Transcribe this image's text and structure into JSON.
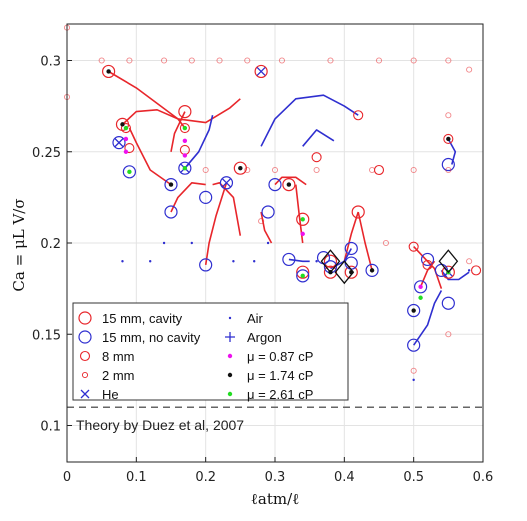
{
  "chart_data": {
    "type": "scatter",
    "xlabel": "ℓatm/ℓ",
    "ylabel": "Ca = μL V/σ",
    "xlim": [
      0,
      0.6
    ],
    "ylim": [
      0.08,
      0.32
    ],
    "x_ticks": [
      "0",
      "0.1",
      "0.2",
      "0.3",
      "0.4",
      "0.5",
      "0.6"
    ],
    "y_ticks": [
      "0.1",
      "0.15",
      "0.2",
      "0.25",
      "0.3"
    ],
    "grid": true,
    "legend_position": "bottom-left",
    "legend": [
      {
        "label": "15 mm, cavity",
        "symbol": "circle-large",
        "color": "#e8262b"
      },
      {
        "label": "Air",
        "symbol": "dot-small",
        "color": "#2f2fd0"
      },
      {
        "label": "15 mm, no cavity",
        "symbol": "circle-large",
        "color": "#2f2fd0"
      },
      {
        "label": "Argon",
        "symbol": "plus",
        "color": "#2f2fd0"
      },
      {
        "label": "8 mm",
        "symbol": "circle-medium",
        "color": "#e8262b"
      },
      {
        "label": "μ = 0.87 cP",
        "symbol": "dot",
        "color": "#ee11ee"
      },
      {
        "label": "2 mm",
        "symbol": "circle-small",
        "color": "#e8262b"
      },
      {
        "label": "μ = 1.74 cP",
        "symbol": "dot",
        "color": "#111111"
      },
      {
        "label": "He",
        "symbol": "cross",
        "color": "#2f2fd0"
      },
      {
        "label": "μ = 2.61 cP",
        "symbol": "dot",
        "color": "#22dd22"
      }
    ],
    "reference_line": {
      "y": 0.11,
      "label": "Theory by Duez et al, 2007",
      "style": "dashed",
      "color": "#666666"
    },
    "series": [
      {
        "name": "15 mm, cavity",
        "color": "#e8262b",
        "points": [
          [
            0.06,
            0.294
          ],
          [
            0.08,
            0.265
          ],
          [
            0.17,
            0.272
          ],
          [
            0.25,
            0.241
          ],
          [
            0.28,
            0.294
          ],
          [
            0.32,
            0.232
          ],
          [
            0.34,
            0.184
          ],
          [
            0.34,
            0.213
          ],
          [
            0.38,
            0.19
          ],
          [
            0.41,
            0.184
          ],
          [
            0.42,
            0.217
          ],
          [
            0.55,
            0.184
          ],
          [
            0.38,
            0.184
          ]
        ]
      },
      {
        "name": "15 mm, no cavity",
        "color": "#2f2fd0",
        "points": [
          [
            0.075,
            0.255
          ],
          [
            0.09,
            0.239
          ],
          [
            0.15,
            0.232
          ],
          [
            0.15,
            0.217
          ],
          [
            0.17,
            0.241
          ],
          [
            0.2,
            0.188
          ],
          [
            0.2,
            0.225
          ],
          [
            0.23,
            0.233
          ],
          [
            0.29,
            0.217
          ],
          [
            0.3,
            0.232
          ],
          [
            0.32,
            0.191
          ],
          [
            0.34,
            0.182
          ],
          [
            0.37,
            0.192
          ],
          [
            0.38,
            0.187
          ],
          [
            0.41,
            0.197
          ],
          [
            0.41,
            0.189
          ],
          [
            0.44,
            0.185
          ],
          [
            0.5,
            0.144
          ],
          [
            0.5,
            0.163
          ],
          [
            0.51,
            0.176
          ],
          [
            0.52,
            0.191
          ],
          [
            0.54,
            0.185
          ],
          [
            0.55,
            0.167
          ],
          [
            0.55,
            0.243
          ]
        ]
      },
      {
        "name": "8 mm",
        "color": "#e8262b",
        "points": [
          [
            0.085,
            0.263
          ],
          [
            0.09,
            0.252
          ],
          [
            0.17,
            0.263
          ],
          [
            0.17,
            0.251
          ],
          [
            0.36,
            0.247
          ],
          [
            0.42,
            0.27
          ],
          [
            0.55,
            0.257
          ],
          [
            0.45,
            0.24
          ],
          [
            0.5,
            0.198
          ],
          [
            0.52,
            0.188
          ],
          [
            0.59,
            0.185
          ]
        ]
      },
      {
        "name": "2 mm",
        "color": "#e8262b",
        "points": [
          [
            0,
            0.318
          ],
          [
            0.05,
            0.3
          ],
          [
            0.09,
            0.3
          ],
          [
            0.14,
            0.3
          ],
          [
            0.18,
            0.3
          ],
          [
            0.22,
            0.3
          ],
          [
            0.26,
            0.3
          ],
          [
            0.31,
            0.3
          ],
          [
            0.38,
            0.3
          ],
          [
            0.45,
            0.3
          ],
          [
            0.5,
            0.3
          ],
          [
            0.55,
            0.3
          ],
          [
            0.58,
            0.295
          ],
          [
            0.2,
            0.24
          ],
          [
            0.26,
            0.24
          ],
          [
            0.3,
            0.24
          ],
          [
            0.36,
            0.24
          ],
          [
            0.44,
            0.24
          ],
          [
            0.5,
            0.24
          ],
          [
            0.55,
            0.24
          ],
          [
            0.28,
            0.212
          ],
          [
            0.46,
            0.2
          ],
          [
            0.58,
            0.19
          ],
          [
            0,
            0.28
          ],
          [
            0.55,
            0.15
          ],
          [
            0.5,
            0.13
          ],
          [
            0.55,
            0.27
          ]
        ]
      },
      {
        "name": "He",
        "color": "#2f2fd0",
        "points": [
          [
            0.075,
            0.255
          ],
          [
            0.23,
            0.233
          ],
          [
            0.28,
            0.294
          ],
          [
            0.17,
            0.241
          ],
          [
            0.55,
            0.184
          ]
        ]
      },
      {
        "name": "Air",
        "color": "#2f2fd0",
        "points": [
          [
            0.08,
            0.19
          ],
          [
            0.12,
            0.19
          ],
          [
            0.14,
            0.2
          ],
          [
            0.18,
            0.2
          ],
          [
            0.24,
            0.19
          ],
          [
            0.27,
            0.19
          ],
          [
            0.29,
            0.2
          ],
          [
            0.36,
            0.19
          ],
          [
            0.5,
            0.125
          ],
          [
            0.58,
            0.185
          ]
        ]
      },
      {
        "name": "μ = 0.87 cP",
        "color": "#ee11ee",
        "points": [
          [
            0.085,
            0.257
          ],
          [
            0.085,
            0.25
          ],
          [
            0.17,
            0.256
          ],
          [
            0.17,
            0.248
          ],
          [
            0.34,
            0.205
          ],
          [
            0.51,
            0.176
          ],
          [
            0.55,
            0.184
          ]
        ]
      },
      {
        "name": "μ = 1.74 cP",
        "color": "#111111",
        "points": [
          [
            0.06,
            0.294
          ],
          [
            0.08,
            0.265
          ],
          [
            0.15,
            0.232
          ],
          [
            0.25,
            0.241
          ],
          [
            0.32,
            0.232
          ],
          [
            0.38,
            0.184
          ],
          [
            0.41,
            0.184
          ],
          [
            0.44,
            0.185
          ],
          [
            0.5,
            0.163
          ],
          [
            0.55,
            0.257
          ]
        ]
      },
      {
        "name": "μ = 2.61 cP",
        "color": "#22dd22",
        "points": [
          [
            0.085,
            0.263
          ],
          [
            0.09,
            0.239
          ],
          [
            0.17,
            0.263
          ],
          [
            0.17,
            0.241
          ],
          [
            0.34,
            0.213
          ],
          [
            0.34,
            0.182
          ],
          [
            0.51,
            0.17
          ],
          [
            0.55,
            0.184
          ]
        ]
      }
    ],
    "curves": [
      {
        "color": "#e8262b",
        "x": [
          0.06,
          0.1,
          0.16,
          0.2,
          0.235,
          0.25
        ],
        "y": [
          0.294,
          0.285,
          0.268,
          0.266,
          0.274,
          0.279
        ]
      },
      {
        "color": "#e8262b",
        "x": [
          0.08,
          0.1,
          0.13,
          0.16,
          0.17
        ],
        "y": [
          0.265,
          0.272,
          0.273,
          0.268,
          0.263
        ]
      },
      {
        "color": "#e8262b",
        "x": [
          0.17,
          0.155,
          0.15
        ],
        "y": [
          0.272,
          0.26,
          0.25
        ]
      },
      {
        "color": "#e8262b",
        "x": [
          0.09,
          0.1,
          0.12,
          0.15
        ],
        "y": [
          0.263,
          0.255,
          0.24,
          0.232
        ]
      },
      {
        "color": "#2f2fd0",
        "x": [
          0.28,
          0.3,
          0.33,
          0.37,
          0.4,
          0.42
        ],
        "y": [
          0.253,
          0.268,
          0.279,
          0.281,
          0.275,
          0.27
        ]
      },
      {
        "color": "#2f2fd0",
        "x": [
          0.34,
          0.36,
          0.385
        ],
        "y": [
          0.253,
          0.262,
          0.256
        ]
      },
      {
        "color": "#2f2fd0",
        "x": [
          0.17,
          0.19,
          0.205,
          0.21
        ],
        "y": [
          0.241,
          0.25,
          0.262,
          0.27
        ]
      },
      {
        "color": "#e8262b",
        "x": [
          0.15,
          0.16,
          0.18,
          0.2
        ],
        "y": [
          0.217,
          0.225,
          0.233,
          0.232
        ]
      },
      {
        "color": "#e8262b",
        "x": [
          0.21,
          0.22,
          0.24,
          0.25
        ],
        "y": [
          0.232,
          0.233,
          0.225,
          0.204
        ]
      },
      {
        "color": "#e8262b",
        "x": [
          0.2,
          0.205,
          0.215,
          0.23
        ],
        "y": [
          0.188,
          0.2,
          0.215,
          0.233
        ]
      },
      {
        "color": "#e8262b",
        "x": [
          0.3,
          0.31,
          0.33,
          0.345
        ],
        "y": [
          0.232,
          0.236,
          0.236,
          0.232
        ]
      },
      {
        "color": "#e8262b",
        "x": [
          0.28,
          0.285,
          0.295
        ],
        "y": [
          0.217,
          0.207,
          0.2
        ]
      },
      {
        "color": "#e8262b",
        "x": [
          0.33,
          0.335,
          0.34
        ],
        "y": [
          0.232,
          0.215,
          0.2
        ]
      },
      {
        "color": "#e8262b",
        "x": [
          0.42,
          0.41,
          0.4
        ],
        "y": [
          0.217,
          0.205,
          0.19
        ]
      },
      {
        "color": "#e8262b",
        "x": [
          0.42,
          0.43,
          0.44
        ],
        "y": [
          0.217,
          0.2,
          0.185
        ]
      },
      {
        "color": "#2f2fd0",
        "x": [
          0.41,
          0.4,
          0.38
        ],
        "y": [
          0.197,
          0.19,
          0.186
        ]
      },
      {
        "color": "#2f2fd0",
        "x": [
          0.32,
          0.34,
          0.35
        ],
        "y": [
          0.191,
          0.19,
          0.19
        ]
      },
      {
        "color": "#e8262b",
        "x": [
          0.5,
          0.52,
          0.53,
          0.54
        ],
        "y": [
          0.198,
          0.19,
          0.186,
          0.175
        ]
      },
      {
        "color": "#2f2fd0",
        "x": [
          0.5,
          0.52,
          0.53,
          0.54
        ],
        "y": [
          0.144,
          0.155,
          0.167,
          0.174
        ]
      },
      {
        "color": "#e8262b",
        "x": [
          0.51,
          0.52,
          0.53
        ],
        "y": [
          0.176,
          0.185,
          0.19
        ]
      },
      {
        "color": "#2f2fd0",
        "x": [
          0.55,
          0.56,
          0.555
        ],
        "y": [
          0.257,
          0.25,
          0.243
        ]
      },
      {
        "color": "#2f2fd0",
        "x": [
          0.54,
          0.55,
          0.565,
          0.58
        ],
        "y": [
          0.185,
          0.18,
          0.18,
          0.184
        ]
      }
    ],
    "diamond_markers": [
      [
        0.38,
        0.19
      ],
      [
        0.4,
        0.184
      ],
      [
        0.55,
        0.19
      ]
    ]
  }
}
